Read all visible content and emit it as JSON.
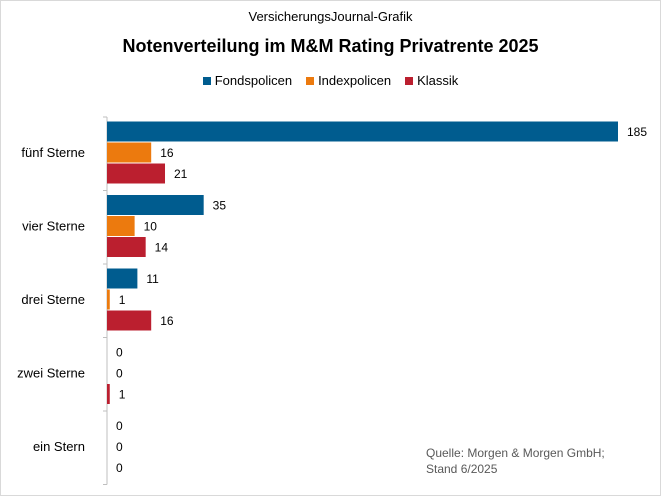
{
  "header": {
    "source": "VersicherungsJournal-Grafik"
  },
  "chart_data": {
    "type": "bar",
    "orientation": "horizontal",
    "title": "Notenverteilung im M&M Rating Privatrente 2025",
    "categories": [
      "fünf Sterne",
      "vier Sterne",
      "drei Sterne",
      "zwei Sterne",
      "ein Stern"
    ],
    "series": [
      {
        "name": "Fondspolicen",
        "color": "#005c8f",
        "values": [
          185,
          35,
          11,
          0,
          0
        ]
      },
      {
        "name": "Indexpolicen",
        "color": "#ec7a0e",
        "values": [
          16,
          10,
          1,
          0,
          0
        ]
      },
      {
        "name": "Klassik",
        "color": "#bb1f2f",
        "values": [
          21,
          14,
          16,
          1,
          0
        ]
      }
    ],
    "xlim": [
      0,
      190
    ],
    "legend_position": "top",
    "data_labels": true,
    "grid": false
  },
  "footnote": {
    "line1": "Quelle: Morgen & Morgen GmbH;",
    "line2": "Stand 6/2025"
  }
}
